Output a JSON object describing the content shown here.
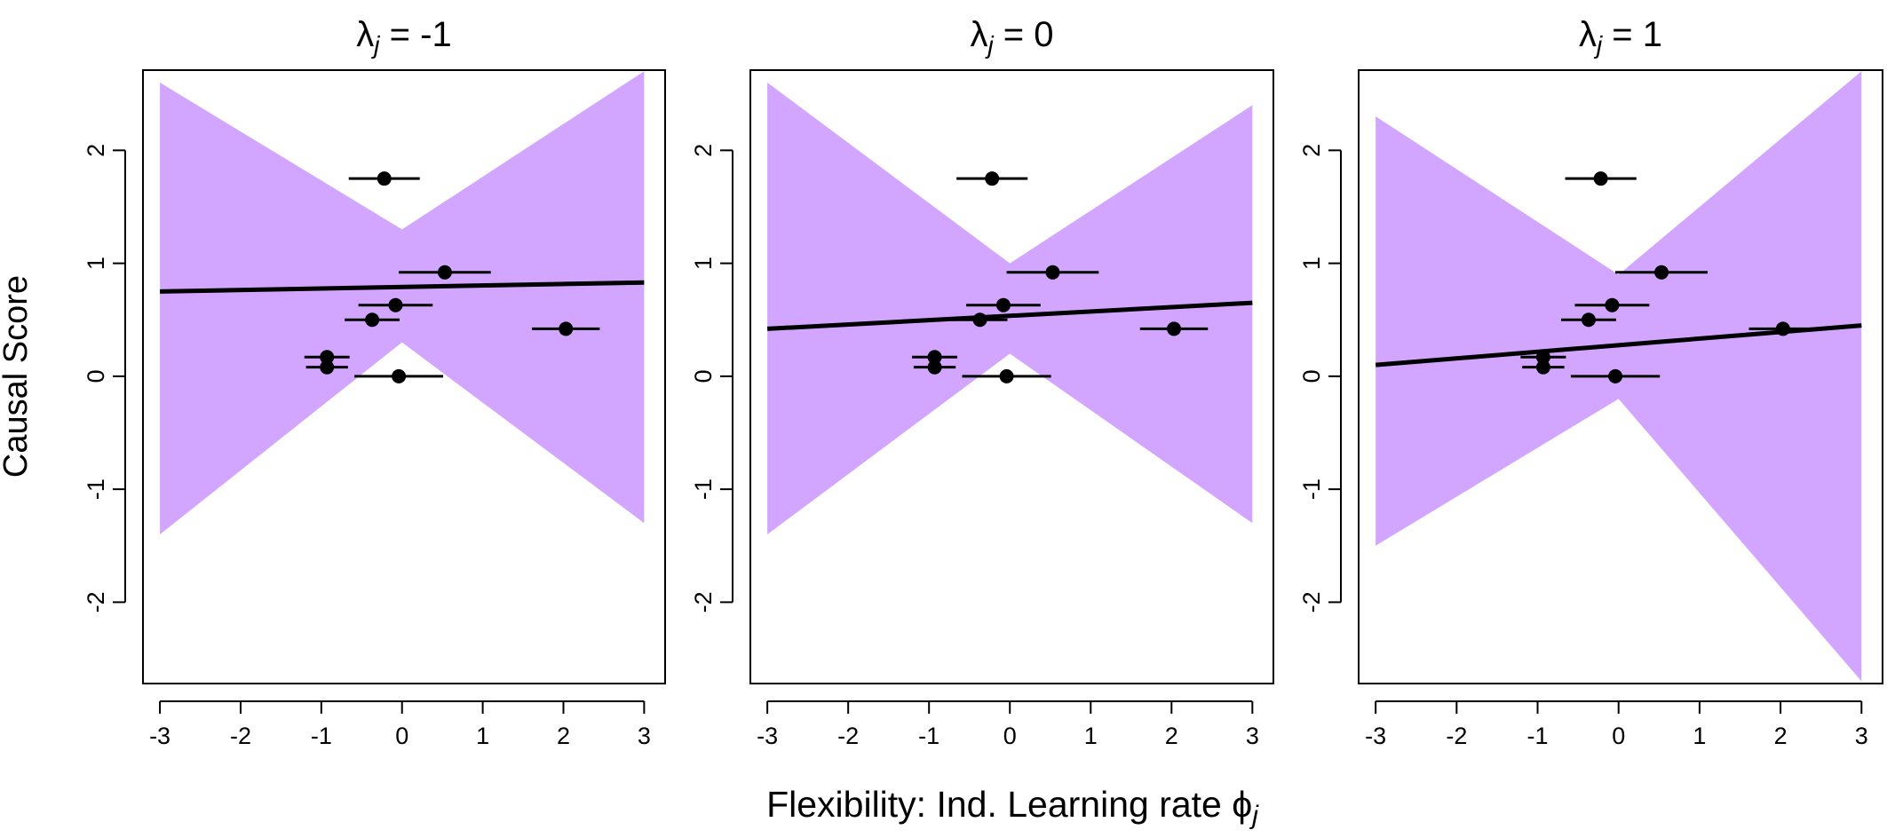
{
  "shared": {
    "xlabel": [
      "Flexibility: Ind. Learning rate  ϕ",
      "j"
    ],
    "ylabel": "Causal Score"
  },
  "chart_data": [
    {
      "type": "posterior-lines",
      "title": [
        "λ",
        "j",
        " = -1"
      ],
      "xlim": [
        -3.21,
        3.26
      ],
      "ylim": [
        -2.72,
        2.71
      ],
      "xticks": [
        -3,
        -2,
        -1,
        0,
        1,
        2,
        3
      ],
      "yticks": [
        -2,
        -1,
        0,
        1,
        2
      ],
      "band": {
        "x": [
          -3,
          0,
          3
        ],
        "lower": [
          -1.4,
          0.3,
          -1.3
        ],
        "upper": [
          2.6,
          1.3,
          2.7
        ],
        "color": "#a64dff"
      },
      "fit": {
        "x": [
          -3,
          3
        ],
        "values": [
          0.75,
          0.83
        ],
        "color": "#000000"
      },
      "points": {
        "x": [
          -0.22,
          0.53,
          -0.08,
          -0.37,
          2.03,
          -0.93,
          -0.93,
          -0.04
        ],
        "y": [
          1.75,
          0.92,
          0.63,
          0.5,
          0.42,
          0.17,
          0.08,
          0.0
        ],
        "xerr": [
          0.44,
          0.57,
          0.46,
          0.34,
          0.42,
          0.28,
          0.26,
          0.55
        ],
        "color": "#000000"
      }
    },
    {
      "type": "posterior-lines",
      "title": [
        "λ",
        "j",
        " = 0"
      ],
      "xlim": [
        -3.21,
        3.26
      ],
      "ylim": [
        -2.72,
        2.71
      ],
      "xticks": [
        -3,
        -2,
        -1,
        0,
        1,
        2,
        3
      ],
      "yticks": [
        -2,
        -1,
        0,
        1,
        2
      ],
      "band": {
        "x": [
          -3,
          0,
          3
        ],
        "lower": [
          -1.4,
          0.2,
          -1.3
        ],
        "upper": [
          2.6,
          1.0,
          2.4
        ],
        "color": "#a64dff"
      },
      "fit": {
        "x": [
          -3,
          3
        ],
        "values": [
          0.42,
          0.65
        ],
        "color": "#000000"
      },
      "points": {
        "x": [
          -0.22,
          0.53,
          -0.08,
          -0.37,
          2.03,
          -0.93,
          -0.93,
          -0.04
        ],
        "y": [
          1.75,
          0.92,
          0.63,
          0.5,
          0.42,
          0.17,
          0.08,
          0.0
        ],
        "xerr": [
          0.44,
          0.57,
          0.46,
          0.34,
          0.42,
          0.28,
          0.26,
          0.55
        ],
        "color": "#000000"
      }
    },
    {
      "type": "posterior-lines",
      "title": [
        "λ",
        "j",
        " = 1"
      ],
      "xlim": [
        -3.21,
        3.26
      ],
      "ylim": [
        -2.72,
        2.71
      ],
      "xticks": [
        -3,
        -2,
        -1,
        0,
        1,
        2,
        3
      ],
      "yticks": [
        -2,
        -1,
        0,
        1,
        2
      ],
      "band": {
        "x": [
          -3,
          0,
          3
        ],
        "lower": [
          -1.5,
          -0.2,
          -2.7
        ],
        "upper": [
          2.3,
          0.9,
          2.7
        ],
        "color": "#a64dff"
      },
      "fit": {
        "x": [
          -3,
          3
        ],
        "values": [
          0.1,
          0.45
        ],
        "color": "#000000"
      },
      "points": {
        "x": [
          -0.22,
          0.53,
          -0.08,
          -0.37,
          2.03,
          -0.93,
          -0.93,
          -0.04
        ],
        "y": [
          1.75,
          0.92,
          0.63,
          0.5,
          0.42,
          0.17,
          0.08,
          0.0
        ],
        "xerr": [
          0.44,
          0.57,
          0.46,
          0.34,
          0.42,
          0.28,
          0.26,
          0.55
        ],
        "color": "#000000"
      }
    }
  ]
}
